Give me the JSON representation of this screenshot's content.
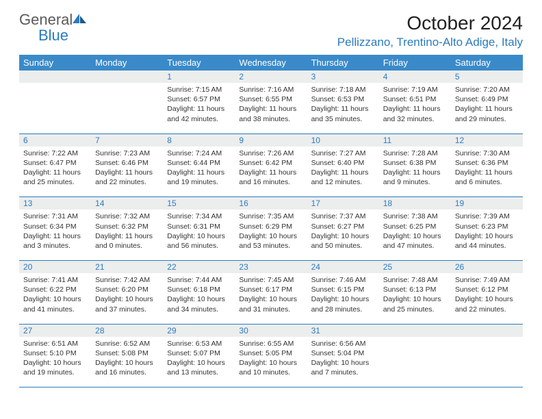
{
  "brand": {
    "name_a": "General",
    "name_b": "Blue"
  },
  "title": "October 2024",
  "location": "Pellizzano, Trentino-Alto Adige, Italy",
  "colors": {
    "header_bg": "#3a8ac9",
    "accent_text": "#2b7bbf",
    "gray_bg": "#eceded",
    "border": "#2b7bbf",
    "body_text": "#333333"
  },
  "day_names": [
    "Sunday",
    "Monday",
    "Tuesday",
    "Wednesday",
    "Thursday",
    "Friday",
    "Saturday"
  ],
  "weeks": [
    [
      null,
      null,
      {
        "n": "1",
        "sunrise": "7:15 AM",
        "sunset": "6:57 PM",
        "daylight": "11 hours and 42 minutes."
      },
      {
        "n": "2",
        "sunrise": "7:16 AM",
        "sunset": "6:55 PM",
        "daylight": "11 hours and 38 minutes."
      },
      {
        "n": "3",
        "sunrise": "7:18 AM",
        "sunset": "6:53 PM",
        "daylight": "11 hours and 35 minutes."
      },
      {
        "n": "4",
        "sunrise": "7:19 AM",
        "sunset": "6:51 PM",
        "daylight": "11 hours and 32 minutes."
      },
      {
        "n": "5",
        "sunrise": "7:20 AM",
        "sunset": "6:49 PM",
        "daylight": "11 hours and 29 minutes."
      }
    ],
    [
      {
        "n": "6",
        "sunrise": "7:22 AM",
        "sunset": "6:47 PM",
        "daylight": "11 hours and 25 minutes."
      },
      {
        "n": "7",
        "sunrise": "7:23 AM",
        "sunset": "6:46 PM",
        "daylight": "11 hours and 22 minutes."
      },
      {
        "n": "8",
        "sunrise": "7:24 AM",
        "sunset": "6:44 PM",
        "daylight": "11 hours and 19 minutes."
      },
      {
        "n": "9",
        "sunrise": "7:26 AM",
        "sunset": "6:42 PM",
        "daylight": "11 hours and 16 minutes."
      },
      {
        "n": "10",
        "sunrise": "7:27 AM",
        "sunset": "6:40 PM",
        "daylight": "11 hours and 12 minutes."
      },
      {
        "n": "11",
        "sunrise": "7:28 AM",
        "sunset": "6:38 PM",
        "daylight": "11 hours and 9 minutes."
      },
      {
        "n": "12",
        "sunrise": "7:30 AM",
        "sunset": "6:36 PM",
        "daylight": "11 hours and 6 minutes."
      }
    ],
    [
      {
        "n": "13",
        "sunrise": "7:31 AM",
        "sunset": "6:34 PM",
        "daylight": "11 hours and 3 minutes."
      },
      {
        "n": "14",
        "sunrise": "7:32 AM",
        "sunset": "6:32 PM",
        "daylight": "11 hours and 0 minutes."
      },
      {
        "n": "15",
        "sunrise": "7:34 AM",
        "sunset": "6:31 PM",
        "daylight": "10 hours and 56 minutes."
      },
      {
        "n": "16",
        "sunrise": "7:35 AM",
        "sunset": "6:29 PM",
        "daylight": "10 hours and 53 minutes."
      },
      {
        "n": "17",
        "sunrise": "7:37 AM",
        "sunset": "6:27 PM",
        "daylight": "10 hours and 50 minutes."
      },
      {
        "n": "18",
        "sunrise": "7:38 AM",
        "sunset": "6:25 PM",
        "daylight": "10 hours and 47 minutes."
      },
      {
        "n": "19",
        "sunrise": "7:39 AM",
        "sunset": "6:23 PM",
        "daylight": "10 hours and 44 minutes."
      }
    ],
    [
      {
        "n": "20",
        "sunrise": "7:41 AM",
        "sunset": "6:22 PM",
        "daylight": "10 hours and 41 minutes."
      },
      {
        "n": "21",
        "sunrise": "7:42 AM",
        "sunset": "6:20 PM",
        "daylight": "10 hours and 37 minutes."
      },
      {
        "n": "22",
        "sunrise": "7:44 AM",
        "sunset": "6:18 PM",
        "daylight": "10 hours and 34 minutes."
      },
      {
        "n": "23",
        "sunrise": "7:45 AM",
        "sunset": "6:17 PM",
        "daylight": "10 hours and 31 minutes."
      },
      {
        "n": "24",
        "sunrise": "7:46 AM",
        "sunset": "6:15 PM",
        "daylight": "10 hours and 28 minutes."
      },
      {
        "n": "25",
        "sunrise": "7:48 AM",
        "sunset": "6:13 PM",
        "daylight": "10 hours and 25 minutes."
      },
      {
        "n": "26",
        "sunrise": "7:49 AM",
        "sunset": "6:12 PM",
        "daylight": "10 hours and 22 minutes."
      }
    ],
    [
      {
        "n": "27",
        "sunrise": "6:51 AM",
        "sunset": "5:10 PM",
        "daylight": "10 hours and 19 minutes."
      },
      {
        "n": "28",
        "sunrise": "6:52 AM",
        "sunset": "5:08 PM",
        "daylight": "10 hours and 16 minutes."
      },
      {
        "n": "29",
        "sunrise": "6:53 AM",
        "sunset": "5:07 PM",
        "daylight": "10 hours and 13 minutes."
      },
      {
        "n": "30",
        "sunrise": "6:55 AM",
        "sunset": "5:05 PM",
        "daylight": "10 hours and 10 minutes."
      },
      {
        "n": "31",
        "sunrise": "6:56 AM",
        "sunset": "5:04 PM",
        "daylight": "10 hours and 7 minutes."
      },
      null,
      null
    ]
  ],
  "labels": {
    "sunrise": "Sunrise:",
    "sunset": "Sunset:",
    "daylight": "Daylight:"
  }
}
